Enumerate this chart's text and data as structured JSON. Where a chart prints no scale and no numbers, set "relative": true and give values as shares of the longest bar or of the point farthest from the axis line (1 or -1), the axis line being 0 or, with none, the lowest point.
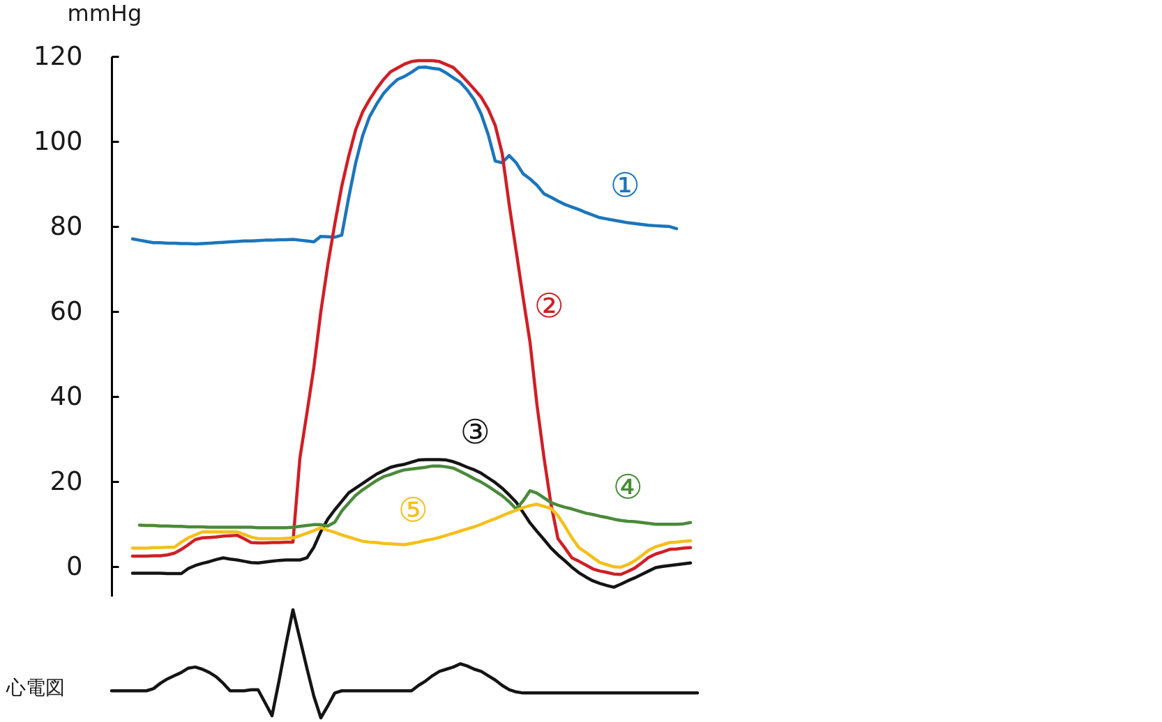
{
  "chart_data": [
    {
      "type": "line",
      "ylabel": "mmHg",
      "tick_labels": "y",
      "ylim": [
        -7,
        120
      ],
      "yticks": [
        0,
        20,
        40,
        60,
        80,
        100,
        120
      ],
      "categories": [
        null,
        null,
        null,
        null,
        null,
        null,
        null,
        null,
        null,
        null,
        null,
        null,
        null,
        null,
        null,
        null,
        null,
        null,
        null,
        null,
        null,
        null,
        null,
        null,
        null,
        null,
        null,
        null,
        null,
        null,
        null,
        null,
        null,
        null,
        null,
        null,
        null,
        null,
        null,
        null,
        null,
        null,
        null,
        null,
        null,
        null,
        null,
        null,
        null,
        null,
        null,
        null,
        null,
        null,
        null,
        null,
        null,
        null,
        null,
        null,
        null,
        null,
        null,
        null,
        null,
        null,
        null,
        null,
        null,
        null,
        null,
        null,
        null,
        null,
        null,
        null,
        null,
        null,
        null,
        null,
        null,
        null,
        null,
        null,
        null,
        null,
        null,
        null
      ],
      "series": [
        {
          "name": "①",
          "color": "#1b75bb",
          "values": [
            null,
            null,
            null,
            77.1,
            76.8,
            76.5,
            76.2,
            76.2,
            76.1,
            76.1,
            76.0,
            76.0,
            75.9,
            76.0,
            76.1,
            76.2,
            76.3,
            76.4,
            76.5,
            76.6,
            76.6,
            76.7,
            76.8,
            76.8,
            76.9,
            76.9,
            77.0,
            76.8,
            76.6,
            76.4,
            77.7,
            77.6,
            77.5,
            78.0,
            86.9,
            95.0,
            101.4,
            105.9,
            108.8,
            111.3,
            113.1,
            114.6,
            115.3,
            116.3,
            117.4,
            117.5,
            117.2,
            117.0,
            116.1,
            115.0,
            113.9,
            112.1,
            109.8,
            106.4,
            101.6,
            95.4,
            95.0,
            96.7,
            95.0,
            92.4,
            91.2,
            89.7,
            87.7,
            86.9,
            86.0,
            85.2,
            84.6,
            84.0,
            83.3,
            82.7,
            82.1,
            81.8,
            81.5,
            81.2,
            80.9,
            80.7,
            80.5,
            80.3,
            80.2,
            80.1,
            80.0,
            79.5,
            null,
            null,
            null,
            null,
            null,
            null
          ]
        },
        {
          "name": "②",
          "color": "#cf1f26",
          "values": [
            null,
            null,
            null,
            2.5,
            2.5,
            2.5,
            2.6,
            2.6,
            2.8,
            3.2,
            4.1,
            5.2,
            6.4,
            6.8,
            6.9,
            7.0,
            7.2,
            7.3,
            7.4,
            6.6,
            5.7,
            5.6,
            5.6,
            5.7,
            5.7,
            5.8,
            5.8,
            25.6,
            36.1,
            46.9,
            60.0,
            71.0,
            80.6,
            89.5,
            96.6,
            102.8,
            107.0,
            109.9,
            112.4,
            114.6,
            116.4,
            117.3,
            118.2,
            118.8,
            119.0,
            119.0,
            119.0,
            118.8,
            118.1,
            117.4,
            115.8,
            114.1,
            112.3,
            110.4,
            107.6,
            103.8,
            97.2,
            85.2,
            74.3,
            63.3,
            52.7,
            37.9,
            25.6,
            14.7,
            6.6,
            4.4,
            2.1,
            1.3,
            0.4,
            -0.5,
            -1.0,
            -1.3,
            -1.7,
            -1.8,
            -1.1,
            -0.3,
            0.9,
            2.2,
            3.0,
            3.5,
            4.1,
            4.2,
            4.4,
            4.5,
            null,
            null,
            null,
            null
          ]
        },
        {
          "name": "③",
          "color": "#141414",
          "values": [
            null,
            null,
            null,
            -1.5,
            -1.5,
            -1.5,
            -1.5,
            -1.5,
            -1.6,
            -1.6,
            -1.6,
            -0.4,
            0.3,
            0.8,
            1.2,
            1.7,
            2.1,
            1.8,
            1.6,
            1.3,
            1.0,
            0.9,
            1.1,
            1.3,
            1.5,
            1.6,
            1.6,
            1.6,
            2.1,
            4.6,
            8.3,
            11.2,
            13.4,
            15.4,
            17.4,
            18.5,
            19.6,
            20.7,
            21.8,
            22.6,
            23.4,
            23.8,
            24.1,
            24.6,
            25.1,
            25.2,
            25.2,
            25.2,
            25.1,
            24.7,
            24.1,
            23.4,
            22.8,
            22.0,
            20.9,
            19.8,
            18.5,
            16.9,
            15.2,
            12.8,
            10.3,
            8.3,
            6.4,
            4.4,
            2.8,
            1.4,
            -0.1,
            -1.4,
            -2.4,
            -3.3,
            -3.9,
            -4.4,
            -4.8,
            -4.1,
            -3.3,
            -2.6,
            -1.8,
            -1.0,
            -0.2,
            0.1,
            0.3,
            0.5,
            0.7,
            0.9,
            null,
            null,
            null,
            null
          ]
        },
        {
          "name": "④",
          "color": "#4a8a3a",
          "values": [
            null,
            null,
            null,
            null,
            9.8,
            9.7,
            9.7,
            9.6,
            9.6,
            9.5,
            9.5,
            9.4,
            9.4,
            9.4,
            9.3,
            9.3,
            9.3,
            9.3,
            9.3,
            9.3,
            9.3,
            9.2,
            9.2,
            9.2,
            9.2,
            9.2,
            9.3,
            9.5,
            9.7,
            9.9,
            9.9,
            9.6,
            10.5,
            13.1,
            15.0,
            16.8,
            18.1,
            19.2,
            20.3,
            21.2,
            21.7,
            22.3,
            22.8,
            23.0,
            23.2,
            23.4,
            23.7,
            23.7,
            23.5,
            23.2,
            22.4,
            21.6,
            20.7,
            19.9,
            18.9,
            17.8,
            16.7,
            15.3,
            13.6,
            15.5,
            17.9,
            17.3,
            16.2,
            15.1,
            14.5,
            14.0,
            13.6,
            13.1,
            12.6,
            12.3,
            11.9,
            11.6,
            11.2,
            10.9,
            10.7,
            10.6,
            10.4,
            10.2,
            10.0,
            10.0,
            10.0,
            10.0,
            10.1,
            10.4,
            null,
            null,
            null,
            null
          ]
        },
        {
          "name": "⑤",
          "color": "#f5bf1b",
          "values": [
            null,
            null,
            null,
            4.4,
            4.4,
            4.4,
            4.5,
            4.5,
            4.6,
            4.6,
            5.8,
            6.8,
            7.5,
            8.2,
            8.2,
            8.2,
            8.2,
            8.2,
            8.2,
            7.6,
            7.0,
            6.6,
            6.6,
            6.6,
            6.6,
            6.7,
            6.8,
            7.3,
            7.9,
            8.5,
            9.2,
            8.6,
            8.1,
            7.5,
            7.0,
            6.5,
            6.0,
            5.8,
            5.7,
            5.5,
            5.4,
            5.3,
            5.2,
            5.5,
            5.8,
            6.2,
            6.5,
            6.9,
            7.4,
            7.9,
            8.4,
            8.9,
            9.4,
            10.0,
            10.7,
            11.3,
            12.0,
            12.7,
            13.3,
            13.9,
            14.4,
            14.7,
            14.2,
            13.7,
            12.0,
            9.5,
            6.8,
            4.5,
            3.4,
            2.2,
            1.0,
            0.5,
            0.0,
            -0.1,
            0.5,
            1.4,
            2.6,
            3.9,
            4.7,
            5.2,
            5.7,
            5.8,
            6.0,
            6.1,
            null,
            null,
            null,
            null
          ]
        }
      ]
    },
    {
      "type": "line",
      "ylabel": "心電図",
      "relative": true,
      "tick_labels": false,
      "categories": [
        null,
        null,
        null,
        null,
        null,
        null,
        null,
        null,
        null,
        null,
        null,
        null,
        null,
        null,
        null,
        null,
        null,
        null,
        null,
        null,
        null,
        null,
        null,
        null,
        null,
        null,
        null,
        null,
        null,
        null,
        null,
        null,
        null,
        null,
        null,
        null,
        null,
        null,
        null,
        null,
        null,
        null,
        null,
        null,
        null,
        null,
        null,
        null,
        null,
        null,
        null,
        null,
        null,
        null,
        null,
        null,
        null,
        null,
        null,
        null,
        null,
        null,
        null,
        null,
        null,
        null,
        null,
        null,
        null,
        null,
        null,
        null,
        null,
        null,
        null,
        null,
        null,
        null,
        null,
        null,
        null,
        null,
        null,
        null,
        null,
        null,
        null,
        null
      ],
      "series": [
        {
          "color": "#141414",
          "values": [
            0.25,
            0.25,
            0.25,
            0.25,
            0.25,
            0.25,
            0.27,
            0.32,
            0.36,
            0.39,
            0.42,
            0.46,
            0.47,
            0.45,
            0.42,
            0.38,
            0.32,
            0.25,
            0.25,
            0.25,
            0.26,
            0.26,
            0.14,
            0.02,
            0.34,
            0.68,
            1,
            0.73,
            0.46,
            0.2,
            0,
            0.11,
            0.23,
            0.25,
            0.25,
            0.25,
            0.25,
            0.25,
            0.25,
            0.25,
            0.25,
            0.25,
            0.25,
            0.25,
            0.3,
            0.34,
            0.39,
            0.43,
            0.45,
            0.47,
            0.5,
            0.48,
            0.45,
            0.43,
            0.39,
            0.35,
            0.3,
            0.26,
            0.24,
            0.23,
            0.23,
            0.23,
            0.23,
            0.23,
            0.23,
            0.23,
            0.23,
            0.23,
            0.23,
            0.23,
            0.23,
            0.23,
            0.23,
            0.23,
            0.23,
            0.23,
            0.23,
            0.23,
            0.23,
            0.23,
            0.23,
            0.23,
            0.23,
            0.23,
            0.23,
            null,
            null,
            null
          ]
        }
      ]
    }
  ]
}
